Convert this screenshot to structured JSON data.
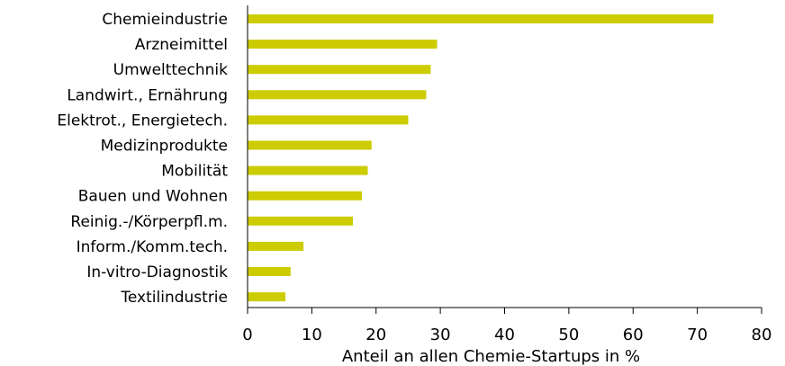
{
  "chart_data": {
    "type": "bar",
    "orientation": "horizontal",
    "categories": [
      "Chemieindustrie",
      "Arzneimittel",
      "Umwelttechnik",
      "Landwirt., Ernährung",
      "Elektrot., Energietech.",
      "Medizinprodukte",
      "Mobilität",
      "Bauen und Wohnen",
      "Reinig.-/Körperpfl.m.",
      "Inform./Komm.tech.",
      "In-vitro-Diagnostik",
      "Textilindustrie"
    ],
    "values": [
      72.5,
      29.5,
      28.5,
      27.8,
      25.0,
      19.3,
      18.7,
      17.8,
      16.4,
      8.7,
      6.7,
      5.9
    ],
    "xlabel": "Anteil an allen Chemie-Startups in %",
    "ylabel": "",
    "xlim": [
      0,
      80
    ],
    "xticks": [
      "0",
      "10",
      "20",
      "30",
      "40",
      "50",
      "60",
      "70",
      "80"
    ],
    "bar_color": "#cccc00",
    "grid": false
  }
}
